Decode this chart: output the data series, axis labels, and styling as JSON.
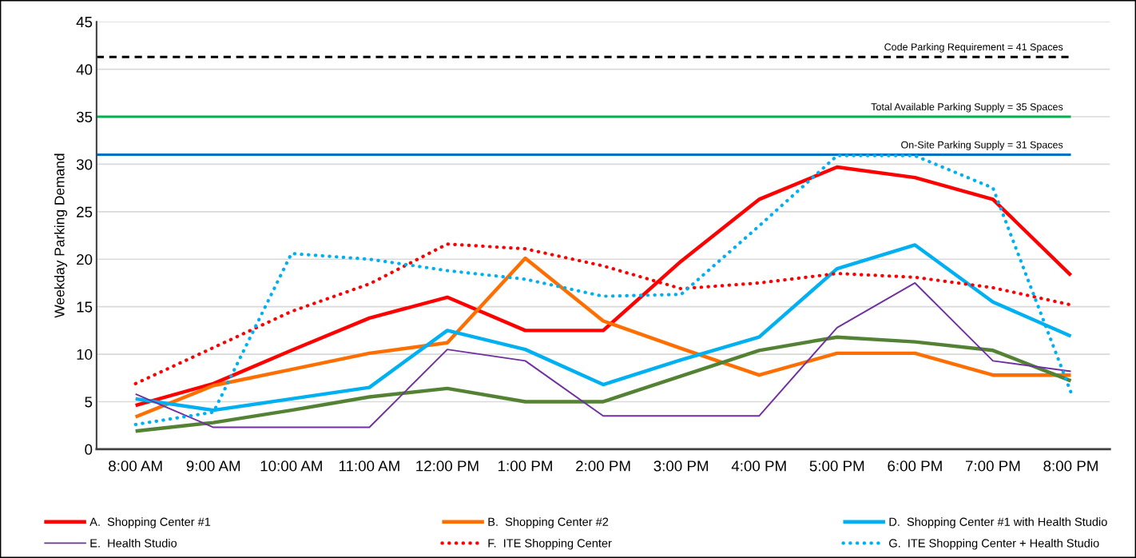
{
  "chart_data": {
    "type": "line",
    "ylabel": "Weekday Parking Demand",
    "categories": [
      "8:00 AM",
      "9:00 AM",
      "10:00 AM",
      "11:00 AM",
      "12:00 PM",
      "1:00 PM",
      "2:00 PM",
      "3:00 PM",
      "4:00 PM",
      "5:00 PM",
      "6:00 PM",
      "7:00 PM",
      "8:00 PM"
    ],
    "ylim": [
      0,
      45
    ],
    "yticks": [
      0,
      5,
      10,
      15,
      20,
      25,
      30,
      35,
      40,
      45
    ],
    "grid": "y",
    "legend": "bottom",
    "series": [
      {
        "name": "A.  Shopping Center #1",
        "color": "#ff0000",
        "line_style": "solid",
        "values": [
          4.6,
          6.9,
          10.4,
          13.8,
          16.0,
          12.5,
          12.5,
          19.8,
          26.3,
          29.7,
          28.6,
          26.3,
          18.3
        ]
      },
      {
        "name": "B.  Shopping Center #2",
        "color": "#ff6e00",
        "line_style": "solid",
        "values": [
          3.4,
          6.7,
          8.4,
          10.1,
          11.2,
          20.1,
          13.5,
          10.6,
          7.8,
          10.1,
          10.1,
          7.8,
          7.8
        ]
      },
      {
        "color": "#548235",
        "line_style": "solid",
        "values": [
          1.9,
          2.8,
          4.1,
          5.5,
          6.4,
          5.0,
          5.0,
          7.7,
          10.4,
          11.8,
          11.3,
          10.4,
          7.2
        ]
      },
      {
        "name": "D.  Shopping Center #1 with Health Studio",
        "color": "#00b0f0",
        "line_style": "solid",
        "values": [
          5.3,
          4.1,
          5.3,
          6.5,
          12.5,
          10.5,
          6.8,
          9.4,
          11.8,
          19.0,
          21.5,
          15.5,
          11.9
        ]
      },
      {
        "name": "E.  Health Studio",
        "color": "#7030a0",
        "line_style": "solid",
        "values": [
          5.8,
          2.3,
          2.3,
          2.3,
          10.5,
          9.3,
          3.5,
          3.5,
          3.5,
          12.8,
          17.5,
          9.3,
          8.2
        ]
      },
      {
        "name": "F.  ITE Shopping Center",
        "color": "#ff0000",
        "line_style": "dotted",
        "values": [
          6.9,
          10.7,
          14.5,
          17.4,
          21.6,
          21.1,
          19.3,
          16.9,
          17.5,
          18.5,
          18.1,
          17.0,
          15.2
        ]
      },
      {
        "name": "G.  ITE Shopping Center + Health Studio",
        "color": "#00b0f0",
        "line_style": "dotted",
        "values": [
          2.6,
          3.9,
          20.6,
          20.0,
          18.8,
          17.9,
          16.1,
          16.3,
          23.5,
          30.9,
          30.9,
          27.5,
          6.0
        ]
      }
    ],
    "ref_lines": [
      {
        "axis": "y",
        "value": 41.3,
        "label": "Code Parking Requirement = 41 Spaces",
        "color": "#000000",
        "line_style": "dashed"
      },
      {
        "axis": "y",
        "value": 35,
        "label": "Total Available Parking Supply = 35 Spaces",
        "color": "#00b050",
        "line_style": "solid"
      },
      {
        "axis": "y",
        "value": 31,
        "label": "On-Site Parking Supply = 31 Spaces",
        "color": "#0070c0",
        "line_style": "solid"
      }
    ]
  }
}
